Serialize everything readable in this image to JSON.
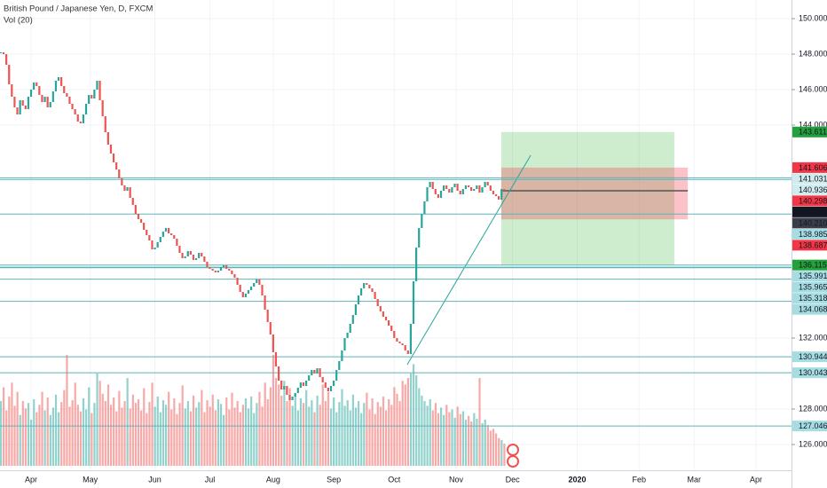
{
  "chart_data": {
    "type": "candlestick",
    "title": "British Pound / Japanese Yen, D, FXCM",
    "subtitle": "Vol (20)",
    "close": [
      148.1,
      148.0,
      147.4,
      146.3,
      145.6,
      145.0,
      144.6,
      145.4,
      145.1,
      144.9,
      145.6,
      146.0,
      146.4,
      146.2,
      145.7,
      145.3,
      145.6,
      145.0,
      145.3,
      145.9,
      146.5,
      146.7,
      146.2,
      145.8,
      145.6,
      145.2,
      144.9,
      144.6,
      144.2,
      144.1,
      144.6,
      145.2,
      145.7,
      145.5,
      146.0,
      146.5,
      145.4,
      144.5,
      143.6,
      142.9,
      142.4,
      141.9,
      141.5,
      141.0,
      140.6,
      140.3,
      140.5,
      139.9,
      139.5,
      139.0,
      138.7,
      138.5,
      138.1,
      137.8,
      137.5,
      137.0,
      137.1,
      137.4,
      137.7,
      138.0,
      138.2,
      137.9,
      137.8,
      137.6,
      137.2,
      136.8,
      136.5,
      136.6,
      136.9,
      136.7,
      136.4,
      136.5,
      136.8,
      136.6,
      136.3,
      136.0,
      135.9,
      135.8,
      135.7,
      135.8,
      136.0,
      136.1,
      135.9,
      135.8,
      135.6,
      135.4,
      135.0,
      134.6,
      134.3,
      134.5,
      134.7,
      134.9,
      135.1,
      135.3,
      135.0,
      134.4,
      133.6,
      132.9,
      132.2,
      131.2,
      130.4,
      129.6,
      129.1,
      129.3,
      128.8,
      128.5,
      128.7,
      128.9,
      129.2,
      129.5,
      129.3,
      129.6,
      129.9,
      130.2,
      130.0,
      130.3,
      129.8,
      129.5,
      129.2,
      129.0,
      129.3,
      129.6,
      130.2,
      130.7,
      131.3,
      132.0,
      132.3,
      132.8,
      133.3,
      133.9,
      134.4,
      134.8,
      135.1,
      135.0,
      134.8,
      134.6,
      134.2,
      133.8,
      133.5,
      133.2,
      133.0,
      132.7,
      132.4,
      132.0,
      131.8,
      131.7,
      131.6,
      131.3,
      131.1,
      132.8,
      135.2,
      137.1,
      138.2,
      139.0,
      139.7,
      140.5,
      140.8,
      140.4,
      140.1,
      139.9,
      140.3,
      140.6,
      140.4,
      140.2,
      140.5,
      140.7,
      140.3,
      140.1,
      140.4,
      140.6,
      140.5,
      140.3,
      140.4,
      140.6,
      140.2,
      140.5,
      140.8,
      140.6,
      140.3,
      140.1,
      140.0,
      139.8,
      140.4,
      140.3
    ],
    "volume": [
      70,
      85,
      60,
      75,
      90,
      65,
      80,
      55,
      70,
      62,
      68,
      50,
      72,
      58,
      66,
      80,
      60,
      74,
      55,
      63,
      77,
      58,
      69,
      82,
      120,
      64,
      71,
      90,
      66,
      59,
      73,
      61,
      85,
      57,
      68,
      100,
      92,
      78,
      70,
      88,
      66,
      74,
      59,
      81,
      63,
      70,
      95,
      62,
      77,
      68,
      72,
      60,
      84,
      57,
      69,
      90,
      64,
      75,
      58,
      71,
      66,
      80,
      61,
      73,
      56,
      68,
      87,
      62,
      70,
      59,
      76,
      63,
      69,
      82,
      58,
      71,
      64,
      77,
      60,
      72,
      67,
      55,
      74,
      61,
      79,
      63,
      70,
      58,
      66,
      73,
      62,
      75,
      57,
      68,
      80,
      64,
      90,
      72,
      85,
      120,
      95,
      88,
      76,
      92,
      70,
      84,
      65,
      78,
      60,
      73,
      68,
      82,
      64,
      71,
      58,
      76,
      66,
      88,
      70,
      80,
      62,
      74,
      58,
      69,
      83,
      65,
      71,
      60,
      77,
      63,
      70,
      57,
      68,
      79,
      61,
      73,
      56,
      69,
      64,
      75,
      60,
      72,
      66,
      85,
      78,
      70,
      92,
      88,
      95,
      100,
      110,
      98,
      84,
      76,
      70,
      65,
      72,
      60,
      68,
      57,
      63,
      55,
      66,
      58,
      61,
      52,
      64,
      56,
      59,
      50,
      54,
      48,
      57,
      51,
      95,
      46,
      50,
      44,
      38,
      40,
      35,
      30,
      28,
      24
    ],
    "up_color": "#26a69a",
    "down_color": "#ef5350",
    "xlim": [
      -0.3,
      287.4
    ],
    "ylim": [
      124.55,
      151.05
    ],
    "xticks": [
      {
        "value": 11,
        "label": "Apr"
      },
      {
        "value": 32.5,
        "label": "May"
      },
      {
        "value": 56,
        "label": "Jun"
      },
      {
        "value": 76,
        "label": "Jul"
      },
      {
        "value": 99,
        "label": "Aug"
      },
      {
        "value": 121,
        "label": "Sep"
      },
      {
        "value": 143,
        "label": "Oct"
      },
      {
        "value": 165.5,
        "label": "Nov"
      },
      {
        "value": 186,
        "label": "Dec"
      },
      {
        "value": 209.5,
        "label": "2020"
      },
      {
        "value": 232,
        "label": "Feb"
      },
      {
        "value": 252,
        "label": "Mar"
      },
      {
        "value": 274.5,
        "label": "Apr"
      }
    ],
    "yticks": [
      {
        "value": 150,
        "label": "150.000"
      },
      {
        "value": 148,
        "label": "148.000"
      },
      {
        "value": 146,
        "label": "146.000"
      },
      {
        "value": 144,
        "label": "144.000"
      },
      {
        "value": 132,
        "label": "132.000"
      },
      {
        "value": 128,
        "label": "128.000"
      },
      {
        "value": 126,
        "label": "126.000"
      }
    ],
    "grid": true,
    "levels": [
      {
        "value": 143.611,
        "label": "143.611",
        "bg": "#22a039",
        "fg": "#ffffff",
        "line": false
      },
      {
        "value": 141.606,
        "label": "141.606",
        "bg": "#f23645",
        "fg": "#ffffff",
        "line": false
      },
      {
        "value": 141.031,
        "label": "141.031",
        "bg": "#d1ecee",
        "fg": "#131722",
        "line": true
      },
      {
        "value": 140.936,
        "label": "140.936",
        "bg": "#d1ecee",
        "fg": "#131722",
        "line": true
      },
      {
        "value": 140.298,
        "label": "140.298",
        "bg": "#f23645",
        "fg": "#ffffff",
        "line": false
      },
      {
        "value": 140.21,
        "label": "140.210",
        "bg": "#131722",
        "fg": "#ffffff",
        "line": false
      },
      {
        "value": 140.21,
        "label": "140.210",
        "bg": "#3a3e4a",
        "fg": "#ffffff",
        "line": false
      },
      {
        "value": 138.985,
        "label": "138.985",
        "bg": "#a6dde2",
        "fg": "#131722",
        "line": true
      },
      {
        "value": 138.687,
        "label": "138.687",
        "bg": "#f23645",
        "fg": "#ffffff",
        "line": false
      },
      {
        "value": 136.115,
        "label": "136.115",
        "bg": "#22a039",
        "fg": "#ffffff",
        "line": true
      },
      {
        "value": 135.991,
        "label": "135.991",
        "bg": "#a6dde2",
        "fg": "#131722",
        "line": true
      },
      {
        "value": 135.965,
        "label": "135.965",
        "bg": "#a6dde2",
        "fg": "#131722",
        "line": true
      },
      {
        "value": 135.318,
        "label": "135.318",
        "bg": "#a6dde2",
        "fg": "#131722",
        "line": true
      },
      {
        "value": 134.068,
        "label": "134.068",
        "bg": "#a6dde2",
        "fg": "#131722",
        "line": true
      },
      {
        "value": 130.944,
        "label": "130.944",
        "bg": "#a6dde2",
        "fg": "#131722",
        "line": true
      },
      {
        "value": 130.043,
        "label": "130.043",
        "bg": "#a6dde2",
        "fg": "#131722",
        "line": true
      },
      {
        "value": 127.046,
        "label": "127.046",
        "bg": "#a6dde2",
        "fg": "#131722",
        "line": true
      }
    ],
    "line_color": "#5fb3b8",
    "position": {
      "profit": [
        136.115,
        143.611
      ],
      "loss": [
        138.687,
        141.606
      ],
      "entry": 140.298,
      "profit_x": [
        181.9,
        244.8
      ],
      "loss_x": [
        181.9,
        249.7
      ]
    },
    "trendline": {
      "x": [
        147.7,
        192.6
      ],
      "y": [
        130.5,
        142.3
      ],
      "color": "#26a69a"
    }
  }
}
